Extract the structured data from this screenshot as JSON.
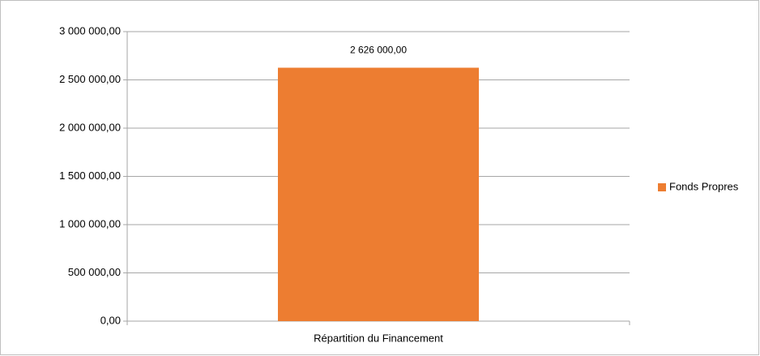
{
  "chart_data": {
    "type": "bar",
    "categories": [
      "Répartition du Financement"
    ],
    "series": [
      {
        "name": "Fonds Propres",
        "color": "#ed7d31",
        "values": [
          2626000
        ],
        "value_labels": [
          "2 626 000,00"
        ]
      }
    ],
    "ylim": [
      0,
      3000000
    ],
    "yticks": [
      {
        "value": 0,
        "label": "0,00"
      },
      {
        "value": 500000,
        "label": "500 000,00"
      },
      {
        "value": 1000000,
        "label": "1 000 000,00"
      },
      {
        "value": 1500000,
        "label": "1 500 000,00"
      },
      {
        "value": 2000000,
        "label": "2 000 000,00"
      },
      {
        "value": 2500000,
        "label": "2 500 000,00"
      },
      {
        "value": 3000000,
        "label": "3 000 000,00"
      }
    ],
    "grid": true,
    "legend": "right"
  }
}
